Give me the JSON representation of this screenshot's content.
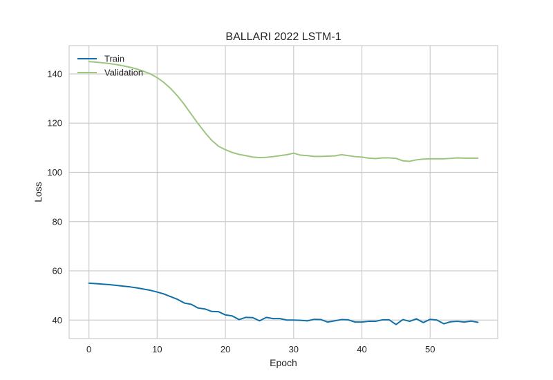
{
  "chart_data": {
    "type": "line",
    "title": "BALLARI 2022 LSTM-1",
    "xlabel": "Epoch",
    "ylabel": "Loss",
    "xlim": [
      -2.9,
      59.9
    ],
    "ylim": [
      32.5,
      151.5
    ],
    "xticks": [
      0,
      10,
      20,
      30,
      40,
      50
    ],
    "yticks": [
      40,
      60,
      80,
      100,
      120,
      140
    ],
    "grid": true,
    "legend": "top-left",
    "series": [
      {
        "name": "Train",
        "color": "#0f6fa8",
        "values": [
          55.0,
          54.8,
          54.6,
          54.4,
          54.1,
          53.8,
          53.5,
          53.1,
          52.6,
          52.1,
          51.4,
          50.6,
          49.5,
          48.4,
          46.9,
          46.4,
          44.9,
          44.5,
          43.5,
          43.4,
          42.1,
          41.7,
          40.2,
          41.1,
          41.0,
          39.7,
          41.1,
          40.6,
          40.6,
          40.0,
          40.0,
          39.9,
          39.7,
          40.3,
          40.2,
          39.2,
          39.7,
          40.2,
          40.1,
          39.2,
          39.2,
          39.5,
          39.5,
          40.1,
          40.1,
          38.2,
          40.2,
          39.5,
          40.5,
          39.0,
          40.3,
          40.0,
          38.5,
          39.3,
          39.5,
          39.2,
          39.6,
          39.1
        ]
      },
      {
        "name": "Validation",
        "color": "#9cc57f",
        "values": [
          145.0,
          144.8,
          144.5,
          144.2,
          143.8,
          143.3,
          142.7,
          142.0,
          141.1,
          140.0,
          138.5,
          136.5,
          134.0,
          131.0,
          127.5,
          123.6,
          119.8,
          116.2,
          113.0,
          110.6,
          109.2,
          108.1,
          107.3,
          106.8,
          106.2,
          106.0,
          106.1,
          106.4,
          106.8,
          107.2,
          107.8,
          107.0,
          106.8,
          106.5,
          106.5,
          106.6,
          106.7,
          107.2,
          106.8,
          106.4,
          106.2,
          105.8,
          105.6,
          105.9,
          105.9,
          105.7,
          104.7,
          104.5,
          105.1,
          105.4,
          105.5,
          105.5,
          105.5,
          105.7,
          105.9,
          105.8,
          105.8,
          105.8
        ]
      }
    ]
  }
}
